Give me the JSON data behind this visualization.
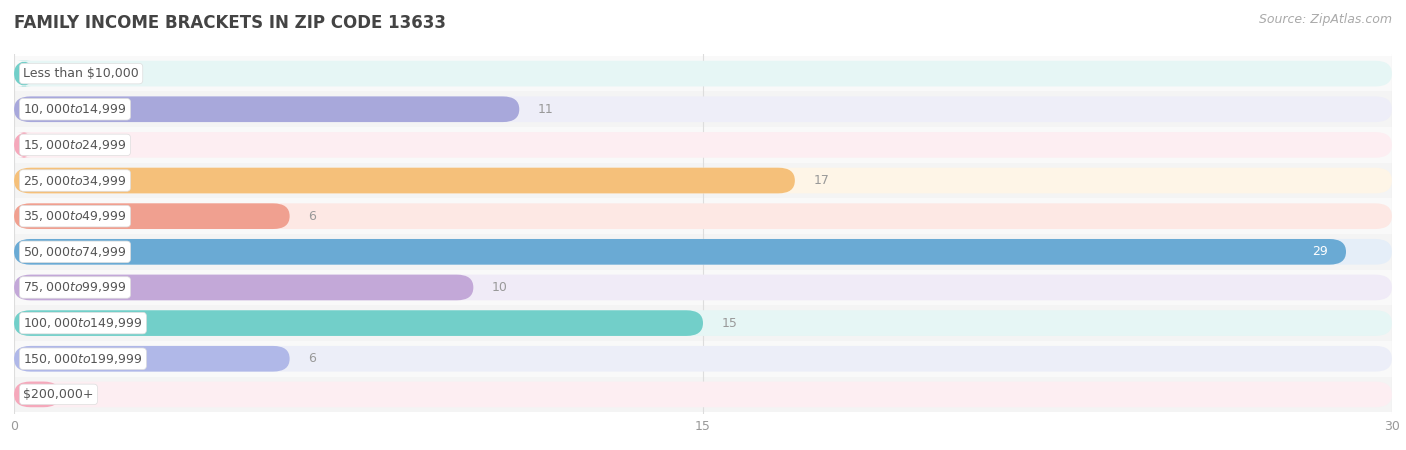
{
  "title": "FAMILY INCOME BRACKETS IN ZIP CODE 13633",
  "source": "Source: ZipAtlas.com",
  "categories": [
    "Less than $10,000",
    "$10,000 to $14,999",
    "$15,000 to $24,999",
    "$25,000 to $34,999",
    "$35,000 to $49,999",
    "$50,000 to $74,999",
    "$75,000 to $99,999",
    "$100,000 to $149,999",
    "$150,000 to $199,999",
    "$200,000+"
  ],
  "values": [
    0,
    11,
    0,
    17,
    6,
    29,
    10,
    15,
    6,
    1
  ],
  "bar_colors": [
    "#72cfc9",
    "#a8a8db",
    "#f5a8bb",
    "#f5c07a",
    "#f0a090",
    "#6aaad4",
    "#c3a8d8",
    "#72cfc9",
    "#b0b8e8",
    "#f5a8bb"
  ],
  "bar_bg_colors": [
    "#e6f6f5",
    "#eeeef8",
    "#fdeef2",
    "#fef5e7",
    "#fde8e4",
    "#e5eef8",
    "#f0ebf7",
    "#e6f6f5",
    "#eceef8",
    "#fdeef2"
  ],
  "row_bg_colors": [
    "#f9f9f9",
    "#f4f4f4",
    "#f9f9f9",
    "#f4f4f4",
    "#f9f9f9",
    "#f4f4f4",
    "#f9f9f9",
    "#f4f4f4",
    "#f9f9f9",
    "#f4f4f4"
  ],
  "xlim": [
    0,
    30
  ],
  "xticks": [
    0,
    15,
    30
  ],
  "label_color_inside": "#ffffff",
  "label_color_outside": "#999999",
  "background_color": "#ffffff",
  "title_fontsize": 12,
  "label_fontsize": 9,
  "category_fontsize": 9,
  "source_fontsize": 9
}
